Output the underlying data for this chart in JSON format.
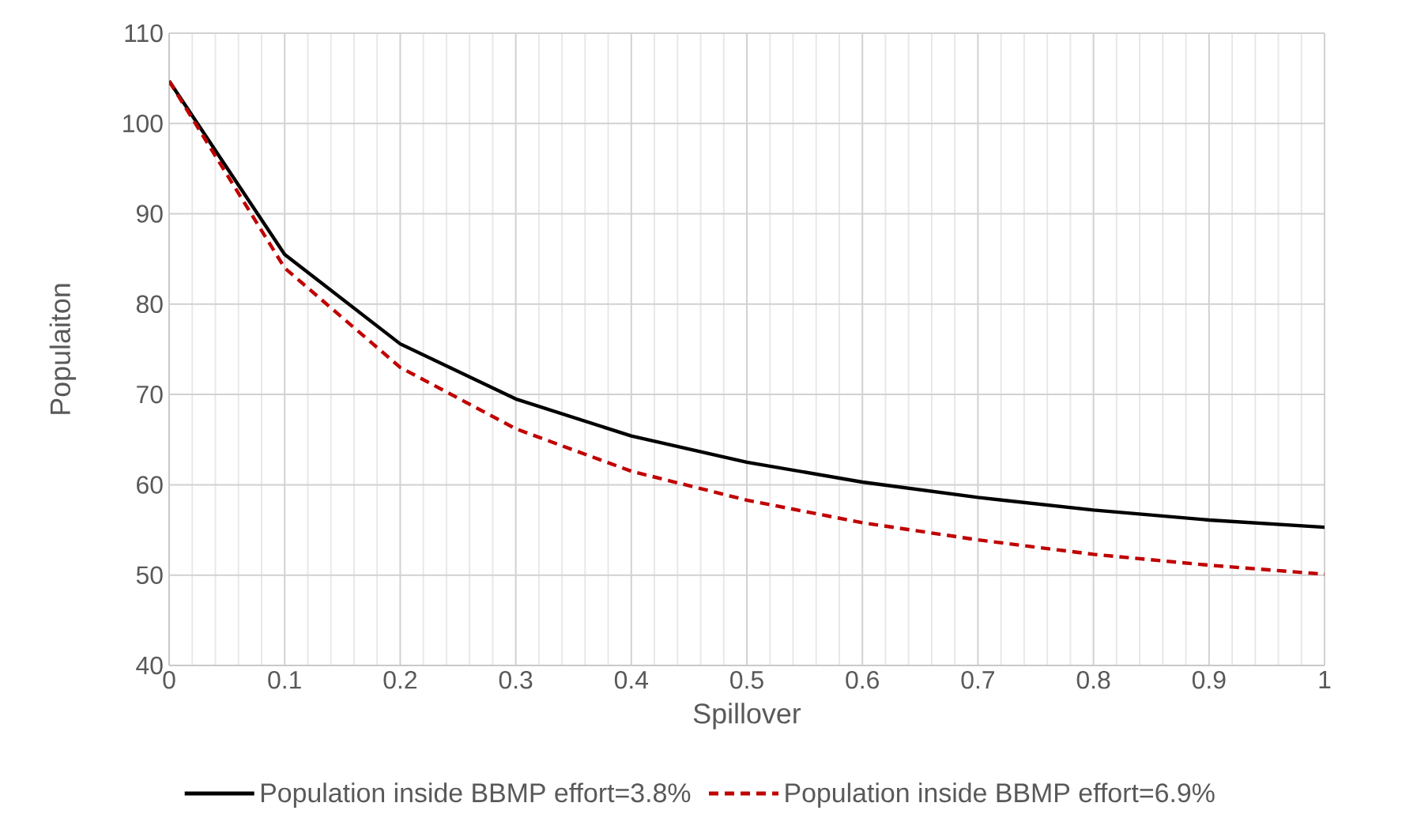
{
  "chart_data": {
    "type": "line",
    "xlabel": "Spillover",
    "ylabel": "Populaiton",
    "x": [
      0,
      0.1,
      0.2,
      0.3,
      0.4,
      0.5,
      0.6,
      0.7,
      0.8,
      0.9,
      1
    ],
    "series": [
      {
        "name": "Population inside BBMP effort=3.8%",
        "color": "#000000",
        "line_style": "solid",
        "values": [
          104.7,
          85.5,
          75.6,
          69.5,
          65.4,
          62.5,
          60.3,
          58.6,
          57.2,
          56.1,
          55.3
        ]
      },
      {
        "name": "Population inside BBMP effort=6.9%",
        "color": "#c00000",
        "line_style": "dashed",
        "values": [
          104.7,
          84.0,
          73.0,
          66.2,
          61.5,
          58.3,
          55.8,
          53.9,
          52.3,
          51.1,
          50.1
        ]
      }
    ],
    "xlim": [
      0,
      1
    ],
    "xticks": [
      0,
      0.1,
      0.2,
      0.3,
      0.4,
      0.5,
      0.6,
      0.7,
      0.8,
      0.9,
      1
    ],
    "ylim": [
      40,
      110
    ],
    "yticks": [
      40,
      50,
      60,
      70,
      80,
      90,
      100,
      110
    ],
    "grid": true,
    "legend": "bottom"
  }
}
